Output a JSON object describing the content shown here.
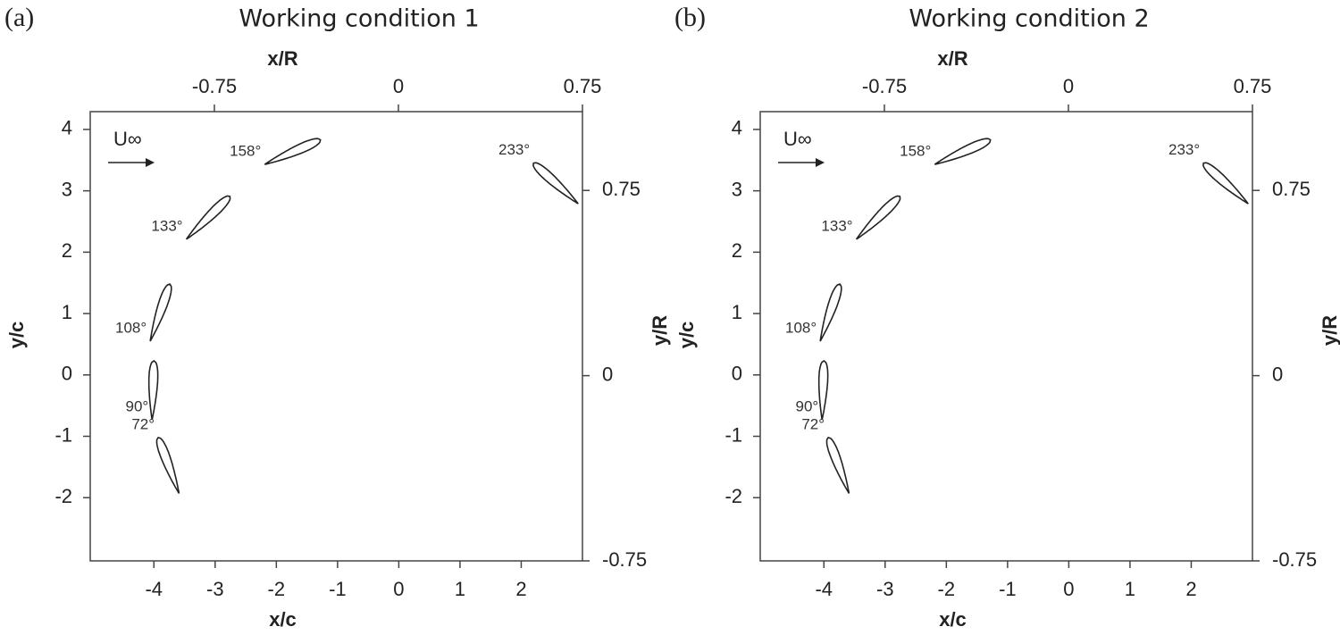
{
  "chart_data": [
    {
      "type": "airfoil",
      "panel": "(a)",
      "title": "Working condition 1",
      "xlabel": "x/c",
      "ylabel": "y/c",
      "x2label": "x/R",
      "y2label": "y/R",
      "freestream": "U∞",
      "xlim": [
        -5.04,
        3.0
      ],
      "xticks": [
        -4,
        -3,
        -2,
        -1,
        0,
        1,
        2
      ],
      "ylim": [
        -3.03,
        4.29
      ],
      "yticks": [
        -2,
        -1,
        0,
        1,
        2,
        3,
        4
      ],
      "x2lim": [
        -1.256,
        0.75
      ],
      "x2ticks": [
        -0.75,
        0,
        0.75
      ],
      "y2lim": [
        -0.75,
        1.069
      ],
      "y2ticks": [
        -0.75,
        0,
        0.75
      ],
      "airfoils": [
        {
          "label": "158°",
          "x": [
            -2.19,
            -1.28
          ],
          "y": [
            3.43,
            3.83
          ]
        },
        {
          "label": "133°",
          "x": [
            -3.47,
            -2.76
          ],
          "y": [
            2.21,
            2.91
          ]
        },
        {
          "label": "108°",
          "x": [
            -4.06,
            -3.74
          ],
          "y": [
            0.55,
            1.48
          ]
        },
        {
          "label": "90°",
          "x": [
            -4.03,
            -4.0
          ],
          "y": [
            -0.73,
            0.23
          ]
        },
        {
          "label": "72°",
          "x": [
            -3.59,
            -3.93
          ],
          "y": [
            -1.93,
            -1.02
          ]
        },
        {
          "label": "233°",
          "x": [
            2.93,
            2.2
          ],
          "y": [
            2.79,
            3.45
          ]
        }
      ]
    },
    {
      "type": "airfoil",
      "panel": "(b)",
      "title": "Working condition 2",
      "xlabel": "x/c",
      "ylabel": "y/c",
      "x2label": "x/R",
      "y2label": "y/R",
      "freestream": "U∞",
      "xlim": [
        -5.04,
        3.0
      ],
      "xticks": [
        -4,
        -3,
        -2,
        -1,
        0,
        1,
        2
      ],
      "ylim": [
        -3.03,
        4.29
      ],
      "yticks": [
        -2,
        -1,
        0,
        1,
        2,
        3,
        4
      ],
      "x2lim": [
        -1.256,
        0.75
      ],
      "x2ticks": [
        -0.75,
        0,
        0.75
      ],
      "y2lim": [
        -0.75,
        1.069
      ],
      "y2ticks": [
        -0.75,
        0,
        0.75
      ],
      "airfoils": [
        {
          "label": "158°",
          "x": [
            -2.19,
            -1.28
          ],
          "y": [
            3.43,
            3.83
          ]
        },
        {
          "label": "133°",
          "x": [
            -3.47,
            -2.76
          ],
          "y": [
            2.21,
            2.91
          ]
        },
        {
          "label": "108°",
          "x": [
            -4.06,
            -3.74
          ],
          "y": [
            0.55,
            1.48
          ]
        },
        {
          "label": "90°",
          "x": [
            -4.03,
            -4.0
          ],
          "y": [
            -0.73,
            0.23
          ]
        },
        {
          "label": "72°",
          "x": [
            -3.59,
            -3.93
          ],
          "y": [
            -1.93,
            -1.02
          ]
        },
        {
          "label": "233°",
          "x": [
            2.93,
            2.2
          ],
          "y": [
            2.79,
            3.45
          ]
        }
      ]
    }
  ]
}
